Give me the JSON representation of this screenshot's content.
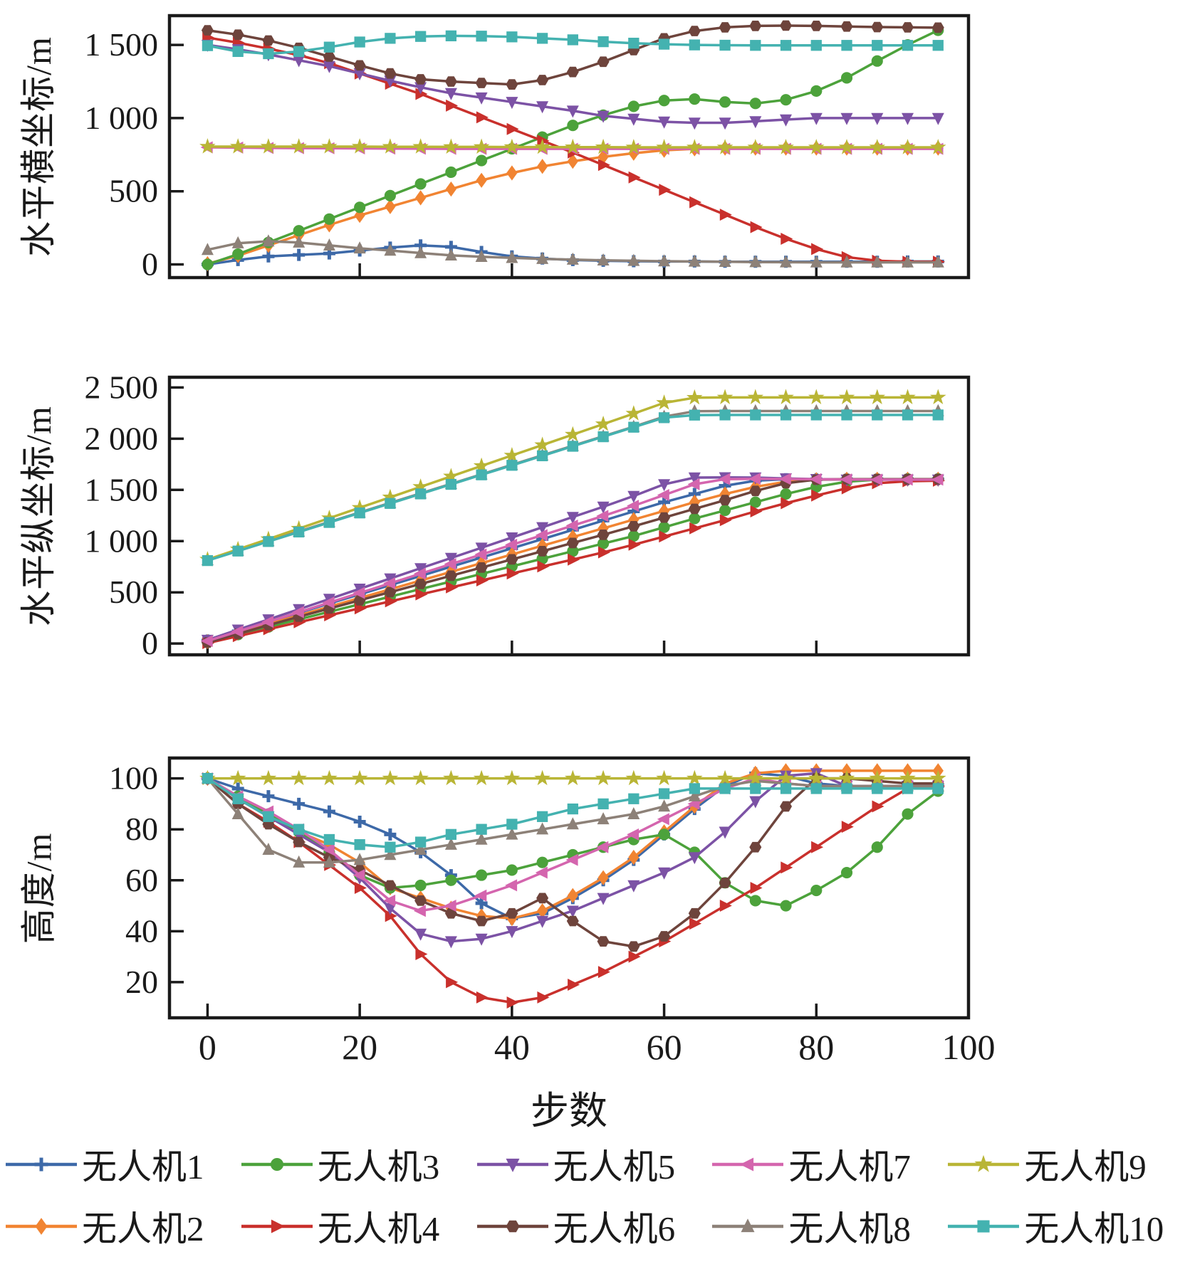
{
  "figure": {
    "background": "#ffffff",
    "frame_color": "#1a1a1a",
    "xlabel": "步数",
    "x_tick_values": [
      0,
      20,
      40,
      60,
      80,
      100
    ],
    "x_tick_labels": [
      "0",
      "20",
      "40",
      "60",
      "80",
      "100"
    ]
  },
  "series_meta": [
    {
      "name": "无人机1",
      "color": "#3D69A8",
      "marker": "plus"
    },
    {
      "name": "无人机2",
      "color": "#F18432",
      "marker": "diamond"
    },
    {
      "name": "无人机3",
      "color": "#4CA23B",
      "marker": "circle"
    },
    {
      "name": "无人机4",
      "color": "#C9302C",
      "marker": "triangle-right"
    },
    {
      "name": "无人机5",
      "color": "#7C52A5",
      "marker": "triangle-down"
    },
    {
      "name": "无人机6",
      "color": "#6E443C",
      "marker": "hexagon"
    },
    {
      "name": "无人机7",
      "color": "#D465AE",
      "marker": "triangle-left"
    },
    {
      "name": "无人机8",
      "color": "#8D8178",
      "marker": "triangle-up"
    },
    {
      "name": "无人机9",
      "color": "#B9B535",
      "marker": "star"
    },
    {
      "name": "无人机10",
      "color": "#44B2B0",
      "marker": "square"
    }
  ],
  "chart_data": [
    {
      "type": "line",
      "title": "",
      "ylabel": "水平横坐标/m",
      "xlim": [
        -5,
        100
      ],
      "ylim": [
        -90,
        1700
      ],
      "y_ticks": [
        {
          "value": 0,
          "label": "0"
        },
        {
          "value": 500,
          "label": "500"
        },
        {
          "value": 1000,
          "label": "1 000"
        },
        {
          "value": 1500,
          "label": "1 500"
        }
      ],
      "x": [
        0,
        4,
        8,
        12,
        16,
        20,
        24,
        28,
        32,
        36,
        40,
        44,
        48,
        52,
        56,
        60,
        64,
        68,
        72,
        76,
        80,
        84,
        88,
        92,
        96
      ],
      "series": [
        {
          "name": "无人机1",
          "values": [
            0,
            30,
            55,
            65,
            75,
            95,
            115,
            130,
            120,
            85,
            55,
            40,
            30,
            25,
            22,
            20,
            20,
            18,
            18,
            18,
            18,
            18,
            18,
            20,
            20
          ]
        },
        {
          "name": "无人机2",
          "values": [
            5,
            60,
            130,
            200,
            270,
            335,
            395,
            455,
            515,
            575,
            625,
            670,
            705,
            735,
            760,
            780,
            790,
            795,
            795,
            795,
            795,
            795,
            795,
            795,
            795
          ]
        },
        {
          "name": "无人机3",
          "values": [
            0,
            70,
            150,
            230,
            310,
            390,
            470,
            550,
            630,
            710,
            790,
            870,
            950,
            1020,
            1080,
            1120,
            1130,
            1110,
            1100,
            1125,
            1185,
            1275,
            1390,
            1500,
            1600
          ]
        },
        {
          "name": "无人机4",
          "values": [
            1550,
            1515,
            1475,
            1430,
            1375,
            1305,
            1235,
            1165,
            1085,
            1005,
            925,
            845,
            765,
            680,
            595,
            510,
            425,
            340,
            255,
            175,
            105,
            50,
            25,
            18,
            18
          ]
        },
        {
          "name": "无人机5",
          "values": [
            1500,
            1470,
            1435,
            1395,
            1355,
            1305,
            1255,
            1210,
            1170,
            1140,
            1110,
            1080,
            1050,
            1015,
            995,
            975,
            968,
            968,
            978,
            990,
            1000,
            1000,
            1000,
            1000,
            1000
          ]
        },
        {
          "name": "无人机6",
          "values": [
            1600,
            1570,
            1530,
            1480,
            1420,
            1360,
            1305,
            1265,
            1250,
            1240,
            1230,
            1260,
            1315,
            1385,
            1465,
            1545,
            1595,
            1620,
            1630,
            1632,
            1630,
            1626,
            1622,
            1620,
            1618
          ]
        },
        {
          "name": "无人机7",
          "values": [
            800,
            798,
            796,
            795,
            794,
            793,
            792,
            791,
            790,
            790,
            790,
            790,
            790,
            790,
            790,
            790,
            790,
            790,
            790,
            790,
            790,
            790,
            790,
            790,
            790
          ]
        },
        {
          "name": "无人机8",
          "values": [
            100,
            145,
            158,
            150,
            130,
            110,
            95,
            78,
            62,
            52,
            45,
            38,
            33,
            28,
            25,
            22,
            20,
            18,
            16,
            15,
            14,
            14,
            14,
            14,
            14
          ]
        },
        {
          "name": "无人机9",
          "values": [
            805,
            805,
            805,
            805,
            805,
            805,
            804,
            804,
            803,
            803,
            802,
            802,
            801,
            801,
            800,
            800,
            800,
            800,
            800,
            800,
            800,
            800,
            800,
            800,
            800
          ]
        },
        {
          "name": "无人机10",
          "values": [
            1495,
            1455,
            1440,
            1455,
            1485,
            1520,
            1545,
            1558,
            1562,
            1560,
            1555,
            1545,
            1535,
            1522,
            1512,
            1505,
            1500,
            1498,
            1497,
            1497,
            1497,
            1497,
            1497,
            1497,
            1497
          ]
        }
      ]
    },
    {
      "type": "line",
      "title": "",
      "ylabel": "水平纵坐标/m",
      "xlim": [
        -5,
        100
      ],
      "ylim": [
        -110,
        2600
      ],
      "y_ticks": [
        {
          "value": 0,
          "label": "0"
        },
        {
          "value": 500,
          "label": "500"
        },
        {
          "value": 1000,
          "label": "1 000"
        },
        {
          "value": 1500,
          "label": "1 500"
        },
        {
          "value": 2000,
          "label": "2 000"
        },
        {
          "value": 2500,
          "label": "2 500"
        }
      ],
      "x": [
        0,
        4,
        8,
        12,
        16,
        20,
        24,
        28,
        32,
        36,
        40,
        44,
        48,
        52,
        56,
        60,
        64,
        68,
        72,
        76,
        80,
        84,
        88,
        92,
        96
      ],
      "series": [
        {
          "name": "无人机1",
          "values": [
            30,
            120,
            210,
            300,
            390,
            480,
            570,
            660,
            750,
            840,
            930,
            1020,
            1110,
            1200,
            1290,
            1380,
            1460,
            1540,
            1590,
            1605,
            1605,
            1605,
            1605,
            1605,
            1605
          ]
        },
        {
          "name": "无人机2",
          "values": [
            20,
            105,
            190,
            275,
            360,
            445,
            530,
            615,
            700,
            785,
            870,
            955,
            1040,
            1125,
            1210,
            1295,
            1380,
            1460,
            1530,
            1580,
            1600,
            1605,
            1605,
            1605,
            1605
          ]
        },
        {
          "name": "无人机3",
          "values": [
            15,
            88,
            162,
            236,
            310,
            384,
            458,
            532,
            606,
            680,
            754,
            828,
            902,
            976,
            1050,
            1135,
            1220,
            1300,
            1380,
            1460,
            1530,
            1580,
            1600,
            1605,
            1605
          ]
        },
        {
          "name": "无人机4",
          "values": [
            5,
            72,
            140,
            208,
            276,
            344,
            412,
            480,
            548,
            616,
            684,
            752,
            820,
            890,
            965,
            1045,
            1125,
            1205,
            1290,
            1370,
            1445,
            1515,
            1565,
            1585,
            1590
          ]
        },
        {
          "name": "无人机5",
          "values": [
            35,
            135,
            235,
            335,
            435,
            535,
            635,
            735,
            835,
            935,
            1035,
            1135,
            1235,
            1335,
            1440,
            1555,
            1620,
            1622,
            1620,
            1612,
            1605,
            1600,
            1600,
            1600,
            1600
          ]
        },
        {
          "name": "无人机6",
          "values": [
            10,
            95,
            180,
            262,
            342,
            422,
            502,
            582,
            662,
            742,
            822,
            902,
            982,
            1062,
            1145,
            1230,
            1315,
            1400,
            1490,
            1565,
            1600,
            1605,
            1605,
            1605,
            1605
          ]
        },
        {
          "name": "无人机7",
          "values": [
            25,
            118,
            212,
            306,
            400,
            494,
            588,
            682,
            776,
            870,
            964,
            1058,
            1152,
            1246,
            1345,
            1450,
            1555,
            1605,
            1608,
            1606,
            1604,
            1602,
            1600,
            1600,
            1600
          ]
        },
        {
          "name": "无人机8",
          "values": [
            815,
            908,
            1001,
            1094,
            1187,
            1280,
            1373,
            1466,
            1559,
            1652,
            1745,
            1838,
            1931,
            2024,
            2117,
            2215,
            2268,
            2270,
            2270,
            2270,
            2270,
            2270,
            2270,
            2270,
            2270
          ]
        },
        {
          "name": "无人机9",
          "values": [
            820,
            920,
            1020,
            1122,
            1224,
            1326,
            1428,
            1530,
            1632,
            1734,
            1836,
            1938,
            2040,
            2142,
            2245,
            2350,
            2400,
            2403,
            2403,
            2403,
            2403,
            2403,
            2403,
            2403,
            2403
          ]
        },
        {
          "name": "无人机10",
          "values": [
            810,
            903,
            996,
            1089,
            1182,
            1275,
            1368,
            1461,
            1554,
            1647,
            1740,
            1833,
            1926,
            2019,
            2112,
            2205,
            2230,
            2232,
            2232,
            2232,
            2232,
            2232,
            2232,
            2232,
            2232
          ]
        }
      ]
    },
    {
      "type": "line",
      "title": "",
      "ylabel": "高度/m",
      "xlim": [
        -5,
        100
      ],
      "ylim": [
        6,
        108
      ],
      "y_ticks": [
        {
          "value": 20,
          "label": "20"
        },
        {
          "value": 40,
          "label": "40"
        },
        {
          "value": 60,
          "label": "60"
        },
        {
          "value": 80,
          "label": "80"
        },
        {
          "value": 100,
          "label": "100"
        }
      ],
      "x": [
        0,
        4,
        8,
        12,
        16,
        20,
        24,
        28,
        32,
        36,
        40,
        44,
        48,
        52,
        56,
        60,
        64,
        68,
        72,
        76,
        80,
        84,
        88,
        92,
        96
      ],
      "series": [
        {
          "name": "无人机1",
          "values": [
            100,
            96,
            93,
            90,
            87,
            83,
            78,
            71,
            62,
            51,
            45,
            47,
            53,
            60,
            68,
            78,
            88,
            97,
            102,
            101,
            98,
            97,
            97,
            97,
            97
          ]
        },
        {
          "name": "无人机2",
          "values": [
            100,
            92,
            85,
            79,
            74,
            67,
            57,
            53,
            49,
            46,
            45,
            48,
            54,
            61,
            69,
            79,
            89,
            98,
            102,
            103,
            103,
            103,
            103,
            103,
            103
          ]
        },
        {
          "name": "无人机3",
          "values": [
            100,
            93,
            86,
            79,
            71,
            62,
            57,
            58,
            60,
            62,
            64,
            67,
            70,
            73,
            76,
            78,
            71,
            59,
            52,
            50,
            56,
            63,
            73,
            86,
            95
          ]
        },
        {
          "name": "无人机4",
          "values": [
            100,
            90,
            83,
            75,
            66,
            57,
            46,
            31,
            20,
            14,
            12,
            14,
            19,
            24,
            30,
            36,
            43,
            50,
            57,
            65,
            73,
            81,
            89,
            96,
            97
          ]
        },
        {
          "name": "无人机5",
          "values": [
            100,
            92,
            85,
            78,
            71,
            61,
            49,
            39,
            36,
            37,
            40,
            44,
            48,
            53,
            58,
            63,
            69,
            79,
            91,
            101,
            102,
            97,
            97,
            97,
            97
          ]
        },
        {
          "name": "无人机6",
          "values": [
            100,
            90,
            82,
            75,
            69,
            64,
            58,
            52,
            47,
            44,
            47,
            53,
            44,
            36,
            34,
            38,
            47,
            59,
            73,
            89,
            100,
            100,
            99,
            98,
            98
          ]
        },
        {
          "name": "无人机7",
          "values": [
            100,
            93,
            87,
            80,
            72,
            62,
            52,
            48,
            50,
            54,
            58,
            63,
            68,
            73,
            78,
            84,
            90,
            96,
            100,
            98,
            97,
            97,
            97,
            97,
            97
          ]
        },
        {
          "name": "无人机8",
          "values": [
            100,
            86,
            72,
            67,
            67,
            68,
            70,
            72,
            74,
            76,
            78,
            80,
            82,
            84,
            86,
            89,
            93,
            97,
            99,
            98,
            97,
            97,
            97,
            97,
            97
          ]
        },
        {
          "name": "无人机9",
          "values": [
            100,
            100,
            100,
            100,
            100,
            100,
            100,
            100,
            100,
            100,
            100,
            100,
            100,
            100,
            100,
            100,
            100,
            100,
            100,
            100,
            100,
            100,
            100,
            100,
            100
          ]
        },
        {
          "name": "无人机10",
          "values": [
            100,
            92,
            85,
            80,
            76,
            74,
            73,
            75,
            78,
            80,
            82,
            85,
            88,
            90,
            92,
            94,
            96,
            96,
            96,
            96,
            96,
            96,
            96,
            96,
            96
          ]
        }
      ]
    }
  ],
  "legend": {
    "rows": [
      [
        "无人机1",
        "无人机3",
        "无人机5",
        "无人机7",
        "无人机9"
      ],
      [
        "无人机2",
        "无人机4",
        "无人机6",
        "无人机8",
        "无人机10"
      ]
    ]
  }
}
